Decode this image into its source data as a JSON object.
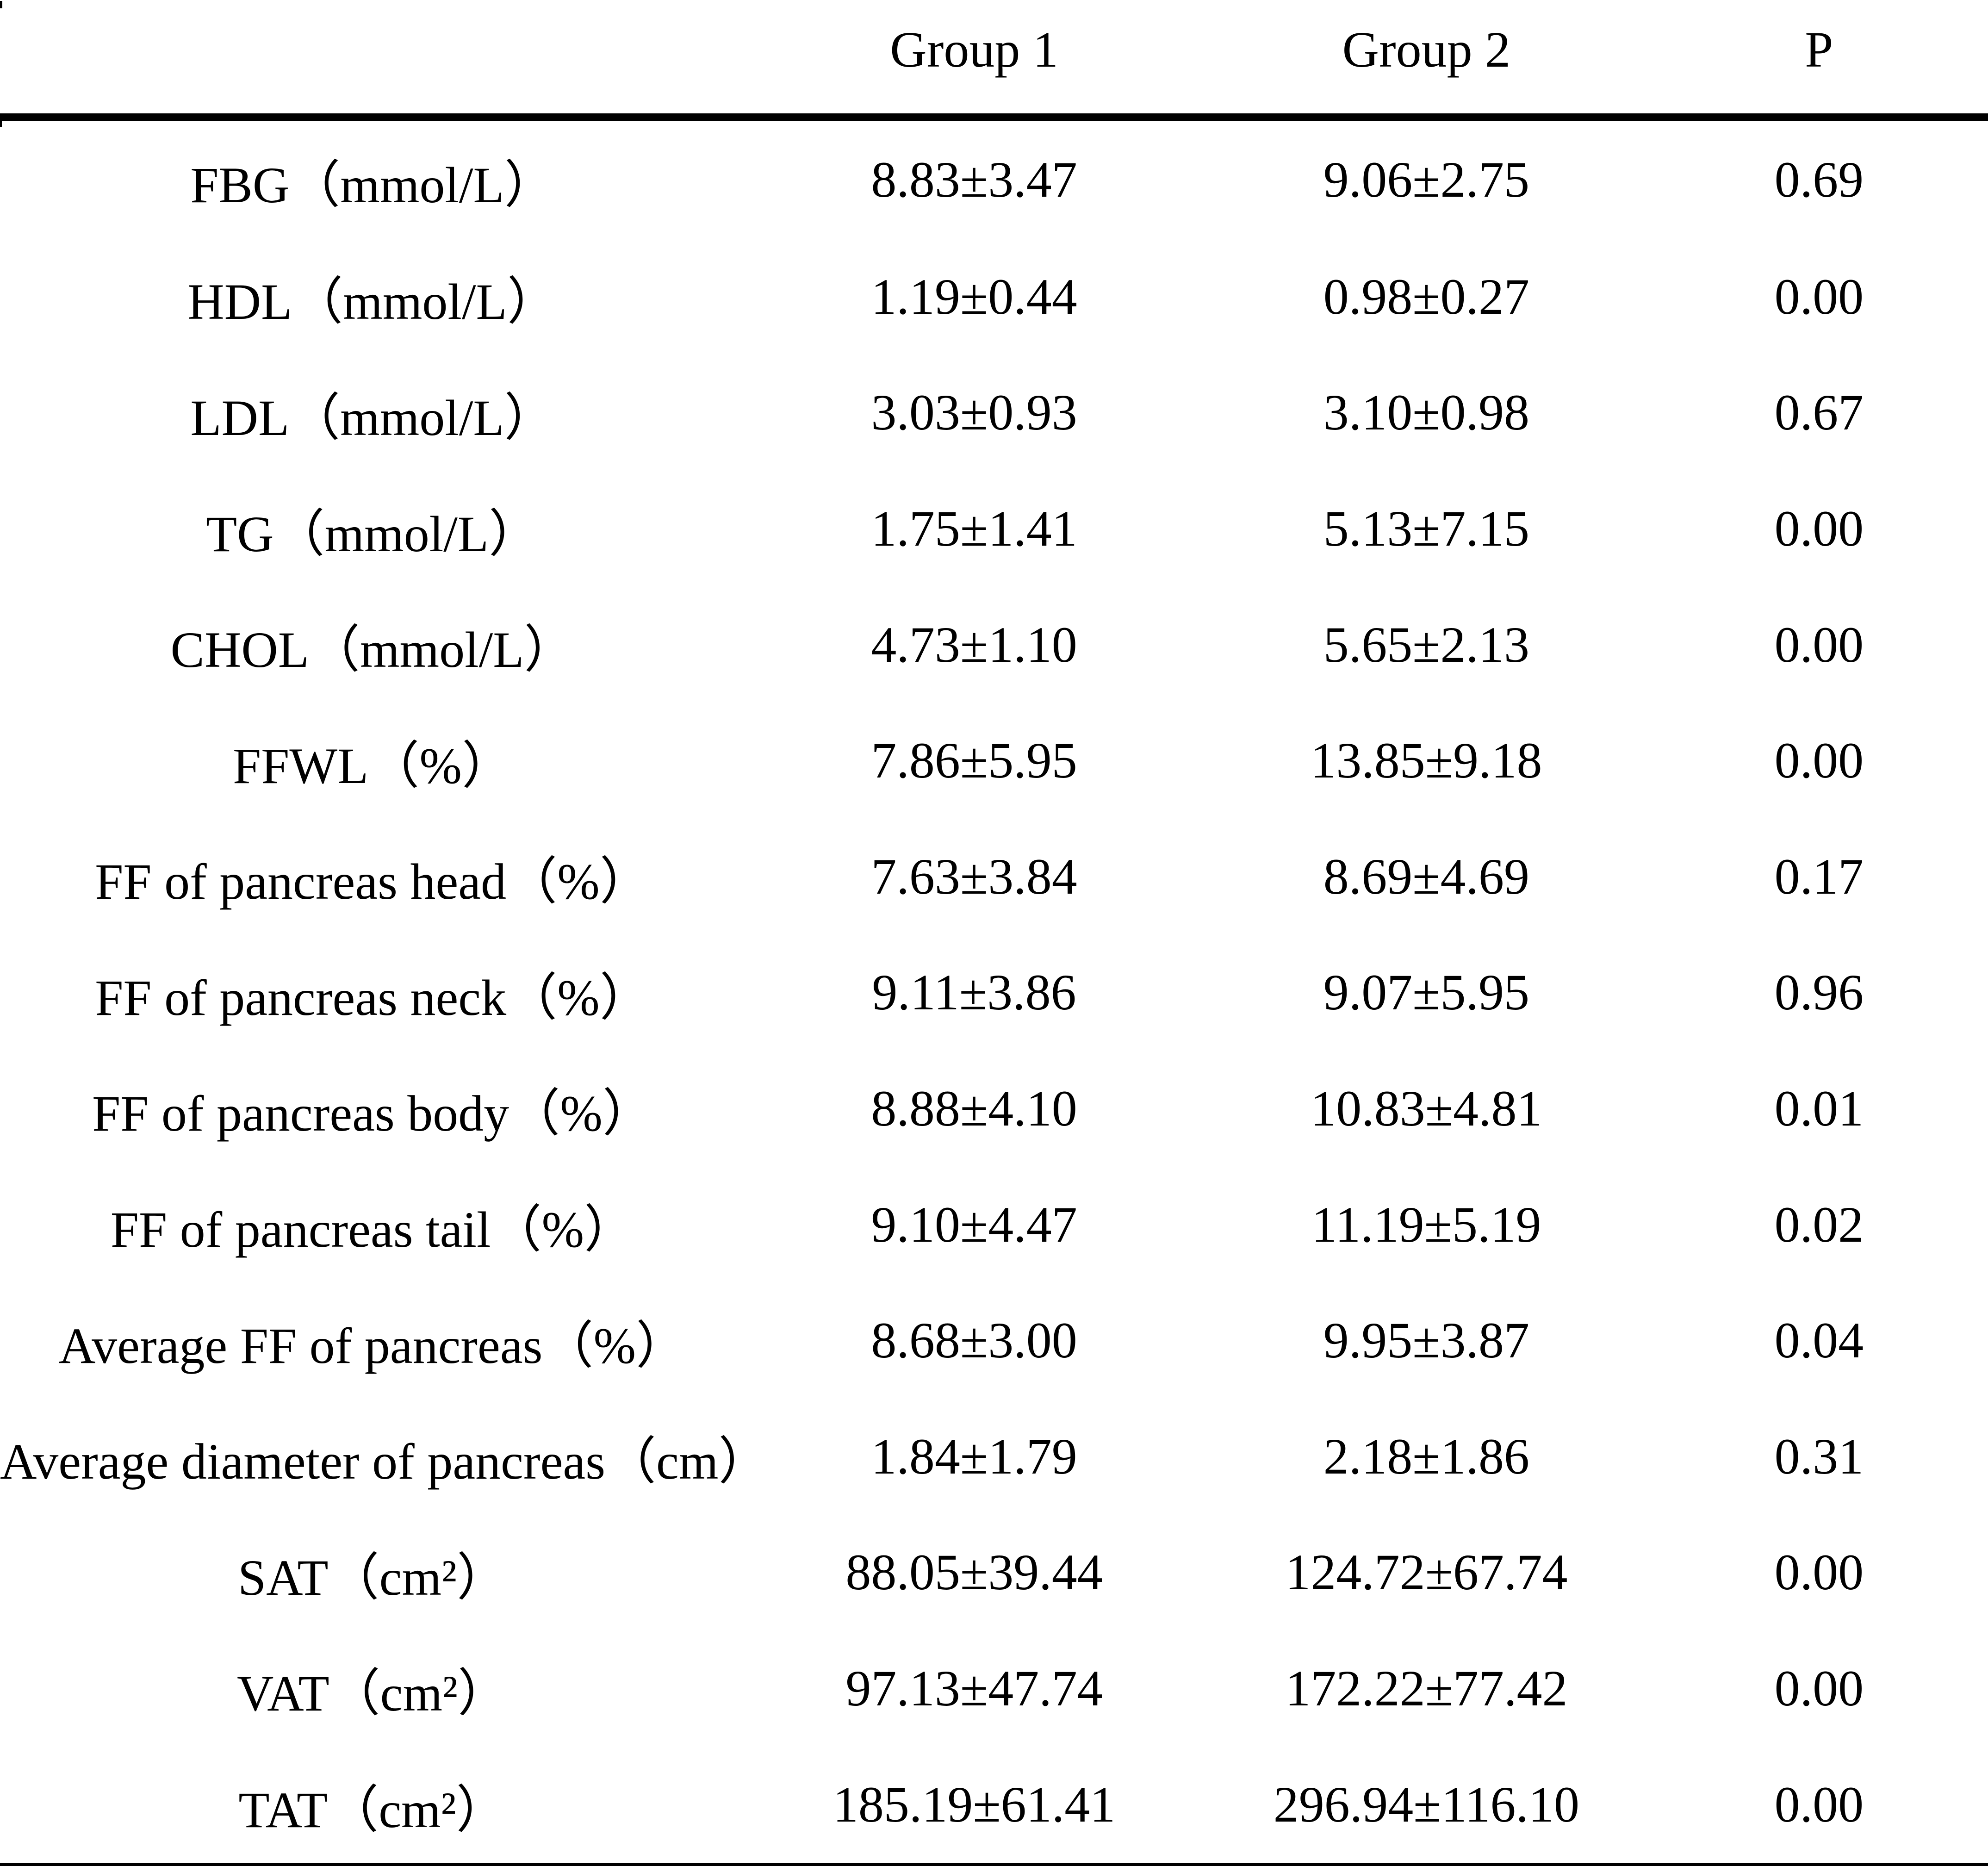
{
  "colors": {
    "text": "#000000",
    "background": "#ffffff",
    "rule": "#000000"
  },
  "table": {
    "columns": [
      "",
      "Group 1",
      "Group 2",
      "P"
    ],
    "rows": [
      {
        "label": "FBG（mmol/L）",
        "group1": "8.83±3.47",
        "group2": "9.06±2.75",
        "p": "0.69"
      },
      {
        "label": "HDL（mmol/L）",
        "group1": "1.19±0.44",
        "group2": "0.98±0.27",
        "p": "0.00"
      },
      {
        "label": "LDL（mmol/L）",
        "group1": "3.03±0.93",
        "group2": "3.10±0.98",
        "p": "0.67"
      },
      {
        "label": "TG（mmol/L）",
        "group1": "1.75±1.41",
        "group2": "5.13±7.15",
        "p": "0.00"
      },
      {
        "label": "CHOL（mmol/L）",
        "group1": "4.73±1.10",
        "group2": "5.65±2.13",
        "p": "0.00"
      },
      {
        "label": "FFWL（%）",
        "group1": "7.86±5.95",
        "group2": "13.85±9.18",
        "p": "0.00"
      },
      {
        "label": "FF of pancreas head（%）",
        "group1": "7.63±3.84",
        "group2": "8.69±4.69",
        "p": "0.17"
      },
      {
        "label": "FF of pancreas neck（%）",
        "group1": "9.11±3.86",
        "group2": "9.07±5.95",
        "p": "0.96"
      },
      {
        "label": "FF of pancreas body（%）",
        "group1": "8.88±4.10",
        "group2": "10.83±4.81",
        "p": "0.01"
      },
      {
        "label": "FF of pancreas tail（%）",
        "group1": "9.10±4.47",
        "group2": "11.19±5.19",
        "p": "0.02"
      },
      {
        "label": "Average FF of pancreas（%）",
        "group1": "8.68±3.00",
        "group2": "9.95±3.87",
        "p": "0.04"
      },
      {
        "label": "Average diameter of pancreas（cm）",
        "group1": "1.84±1.79",
        "group2": "2.18±1.86",
        "p": "0.31"
      },
      {
        "label": "SAT（cm²）",
        "group1": "88.05±39.44",
        "group2": "124.72±67.74",
        "p": "0.00"
      },
      {
        "label": "VAT（cm²）",
        "group1": "97.13±47.74",
        "group2": "172.22±77.42",
        "p": "0.00"
      },
      {
        "label": "TAT（cm²）",
        "group1": "185.19±61.41",
        "group2": "296.94±116.10",
        "p": "0.00"
      }
    ]
  }
}
